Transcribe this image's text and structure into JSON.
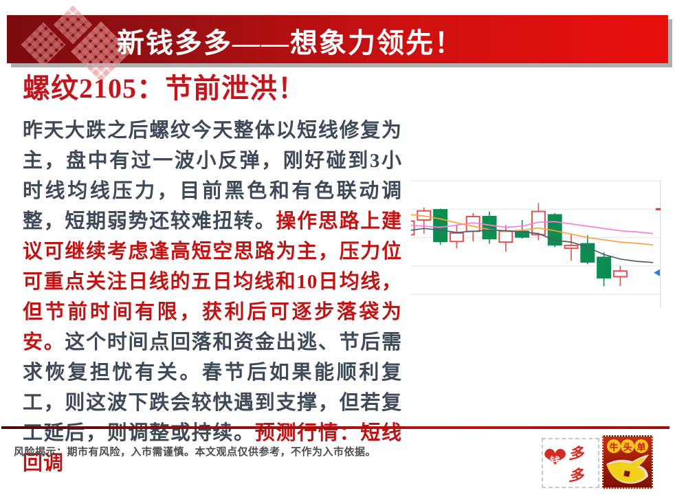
{
  "banner": {
    "title": "新钱多多——想象力领先！",
    "gradient_left": "#7b0b0f",
    "gradient_right": "#e9100c",
    "text_color": "#ffffff"
  },
  "article": {
    "title": "螺纹2105：节前泄洪！",
    "title_color": "#c3161c",
    "dark_color": "#3f4a58",
    "red_color": "#c01414",
    "segments": [
      {
        "color": "dark",
        "text": "昨天大跌之后螺纹今天整体以短线修复为主，盘中有过一波小反弹，刚好碰到3小时线均线压力，目前黑色和有色联动调整，短期弱势还较难扭转。"
      },
      {
        "color": "red",
        "text": "操作思路上建议可继续考虑逢高短空思路为主，压力位可重点关注日线的五日均线和10日均线，但节前时间有限，获利后可逐步落袋为安。"
      },
      {
        "color": "dark",
        "text": "这个时间点回落和资金出逃、节后需求恢复担忧有关。春节后如果能顺利复工，则这波下跌会较快遇到支撑，但若复工延后，则调整或持续。"
      },
      {
        "color": "red",
        "text": "预测行情：短线回调"
      }
    ]
  },
  "chart_data": {
    "type": "candlestick",
    "instrument": "螺纹2105",
    "ylim": [
      4150,
      4350
    ],
    "gridlines": [
      4150,
      4200,
      4250,
      4300,
      4350
    ],
    "grid_color": "#e7e9eb",
    "up_color": "#e2504f",
    "down_color": "#0e8d50",
    "candles": [
      {
        "open": 4255,
        "high": 4283,
        "low": 4248,
        "close": 4279
      },
      {
        "open": 4281,
        "high": 4303,
        "low": 4257,
        "close": 4297
      },
      {
        "open": 4299,
        "high": 4301,
        "low": 4237,
        "close": 4243
      },
      {
        "open": 4243,
        "high": 4272,
        "low": 4231,
        "close": 4258
      },
      {
        "open": 4261,
        "high": 4293,
        "low": 4243,
        "close": 4287
      },
      {
        "open": 4287,
        "high": 4296,
        "low": 4239,
        "close": 4248
      },
      {
        "open": 4242,
        "high": 4272,
        "low": 4225,
        "close": 4261
      },
      {
        "open": 4261,
        "high": 4281,
        "low": 4248,
        "close": 4251
      },
      {
        "open": 4255,
        "high": 4311,
        "low": 4245,
        "close": 4296
      },
      {
        "open": 4290,
        "high": 4293,
        "low": 4233,
        "close": 4237
      },
      {
        "open": 4231,
        "high": 4255,
        "low": 4209,
        "close": 4236
      },
      {
        "open": 4239,
        "high": 4254,
        "low": 4203,
        "close": 4207
      },
      {
        "open": 4215,
        "high": 4224,
        "low": 4164,
        "close": 4179
      },
      {
        "open": 4181,
        "high": 4200,
        "low": 4164,
        "close": 4191
      }
    ],
    "ma_series": [
      {
        "name": "ma-pink",
        "color": "#fb7ee0",
        "values": [
          4272,
          4270,
          4268,
          4272,
          4276,
          4272,
          4268,
          4270,
          4277,
          4278,
          4274,
          4270,
          4266,
          4262,
          4260,
          4257
        ]
      },
      {
        "name": "ma-orange",
        "color": "#ffa13d",
        "values": [
          4291,
          4288,
          4283,
          4276,
          4270,
          4264,
          4261,
          4263,
          4267,
          4262,
          4256,
          4250,
          4246,
          4242,
          4240,
          4237
        ]
      },
      {
        "name": "ma-dark",
        "color": "#4e5b6e",
        "values": [
          4262,
          4266,
          4263,
          4259,
          4261,
          4263,
          4262,
          4260,
          4257,
          4245,
          4242,
          4233,
          4220,
          4212,
          4208,
          4206
        ]
      }
    ],
    "markers": [
      {
        "type": "left-triangle",
        "color": "#2b7de0",
        "price": 4188
      },
      {
        "type": "tick",
        "color": "#e23333",
        "price": 4300
      }
    ]
  },
  "footer": {
    "disclaimer": "风险揭示：期市有风险，入市需谨慎。本文观点仅供参考，不作为入市依据。",
    "stamps": {
      "money": {
        "heart_char": "钱",
        "suffix": "多多",
        "heart_color": "#d62a22",
        "text_color": "#d62a22"
      },
      "bull": {
        "circles": [
          "牛",
          "头",
          "单"
        ],
        "circle_color": "#f7c31e",
        "char_color": "#c81d12",
        "bull_color": "#f2d11c"
      }
    }
  }
}
